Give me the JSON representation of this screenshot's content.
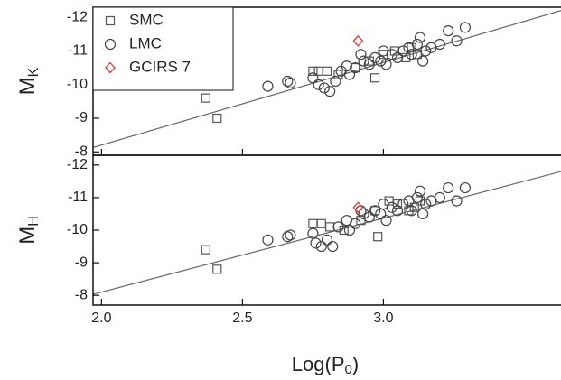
{
  "chart_data": [
    {
      "type": "scatter",
      "ylabel": "M",
      "ylabel_subscript": "K",
      "xlim": [
        1.97,
        3.63
      ],
      "xticks": [
        2,
        2.5,
        3
      ],
      "ylim": [
        -7.9,
        -12.3
      ],
      "yticks": [
        -12,
        -11,
        -10,
        -9,
        -8
      ],
      "legend": "upper left",
      "fit": {
        "color": "#666666",
        "x": [
          1.97,
          3.63
        ],
        "y": [
          -8.13,
          -12.2
        ]
      },
      "series": [
        {
          "name": "SMC",
          "color": "#555555",
          "marker": "square",
          "x": [
            2.37,
            2.41,
            2.75,
            2.77,
            2.8,
            2.84,
            2.9,
            2.95,
            3.0,
            3.04,
            3.08,
            3.1,
            2.97,
            3.12
          ],
          "y": [
            -9.6,
            -9.0,
            -10.4,
            -10.4,
            -10.4,
            -10.3,
            -10.5,
            -10.7,
            -10.9,
            -11.0,
            -10.8,
            -11.1,
            -10.2,
            -10.9
          ]
        },
        {
          "name": "LMC",
          "color": "#444444",
          "marker": "circle",
          "x": [
            2.59,
            2.66,
            2.67,
            2.75,
            2.77,
            2.79,
            2.81,
            2.83,
            2.85,
            2.87,
            2.88,
            2.9,
            2.93,
            2.95,
            2.97,
            2.99,
            3.01,
            3.03,
            3.05,
            3.07,
            3.09,
            3.1,
            3.12,
            3.13,
            3.15,
            3.17,
            3.2,
            3.23,
            3.26,
            3.29,
            2.92,
            3.0,
            3.14
          ],
          "y": [
            -9.95,
            -10.1,
            -10.05,
            -10.2,
            -10.0,
            -9.9,
            -9.8,
            -10.1,
            -10.4,
            -10.55,
            -10.3,
            -10.5,
            -10.7,
            -10.6,
            -10.8,
            -10.7,
            -10.6,
            -10.9,
            -10.8,
            -11.0,
            -11.1,
            -10.9,
            -11.2,
            -11.4,
            -11.0,
            -11.1,
            -11.2,
            -11.6,
            -11.3,
            -11.7,
            -10.9,
            -11.0,
            -10.7
          ]
        },
        {
          "name": "GCIRS 7",
          "color": "#e03c3c",
          "marker": "diamond",
          "x": [
            2.91
          ],
          "y": [
            -11.3
          ]
        }
      ]
    },
    {
      "type": "scatter",
      "ylabel": "M",
      "ylabel_subscript": "H",
      "xlabel": "Log(P",
      "xlabel_subscript": "0",
      "xlabel_suffix": ")",
      "xlim": [
        1.97,
        3.63
      ],
      "xticks": [
        {
          "value": 2,
          "label": "2.0"
        },
        {
          "value": 2.5,
          "label": "2.5"
        },
        {
          "value": 3,
          "label": "3.0"
        }
      ],
      "ylim": [
        -7.7,
        -12.3
      ],
      "yticks": [
        -12,
        -11,
        -10,
        -9,
        -8
      ],
      "fit": {
        "color": "#666666",
        "x": [
          1.97,
          3.63
        ],
        "y": [
          -8.03,
          -11.8
        ]
      },
      "series": [
        {
          "color": "#555555",
          "marker": "square",
          "x": [
            2.37,
            2.41,
            2.75,
            2.78,
            2.81,
            2.86,
            2.92,
            2.97,
            3.02,
            3.05,
            3.09,
            3.11,
            2.98,
            3.13
          ],
          "y": [
            -9.4,
            -8.8,
            -10.2,
            -10.2,
            -10.1,
            -10.0,
            -10.3,
            -10.6,
            -10.9,
            -10.8,
            -10.6,
            -10.7,
            -9.8,
            -10.9
          ]
        },
        {
          "color": "#444444",
          "marker": "circle",
          "x": [
            2.59,
            2.66,
            2.67,
            2.75,
            2.76,
            2.78,
            2.8,
            2.82,
            2.84,
            2.87,
            2.88,
            2.9,
            2.93,
            2.95,
            2.97,
            2.99,
            3.01,
            3.03,
            3.05,
            3.07,
            3.09,
            3.1,
            3.12,
            3.13,
            3.15,
            3.17,
            3.2,
            3.23,
            3.26,
            3.29,
            2.92,
            3.0,
            3.14
          ],
          "y": [
            -9.7,
            -9.8,
            -9.85,
            -9.9,
            -9.6,
            -9.5,
            -9.7,
            -9.5,
            -10.1,
            -10.3,
            -10.0,
            -10.2,
            -10.5,
            -10.4,
            -10.6,
            -10.5,
            -10.3,
            -10.7,
            -10.6,
            -10.8,
            -10.9,
            -10.6,
            -11.0,
            -11.2,
            -10.8,
            -10.9,
            -11.0,
            -11.3,
            -10.9,
            -11.3,
            -10.6,
            -10.8,
            -10.5
          ]
        },
        {
          "color": "#e03c3c",
          "marker": "diamond",
          "x": [
            2.91
          ],
          "y": [
            -10.7
          ]
        }
      ]
    }
  ]
}
